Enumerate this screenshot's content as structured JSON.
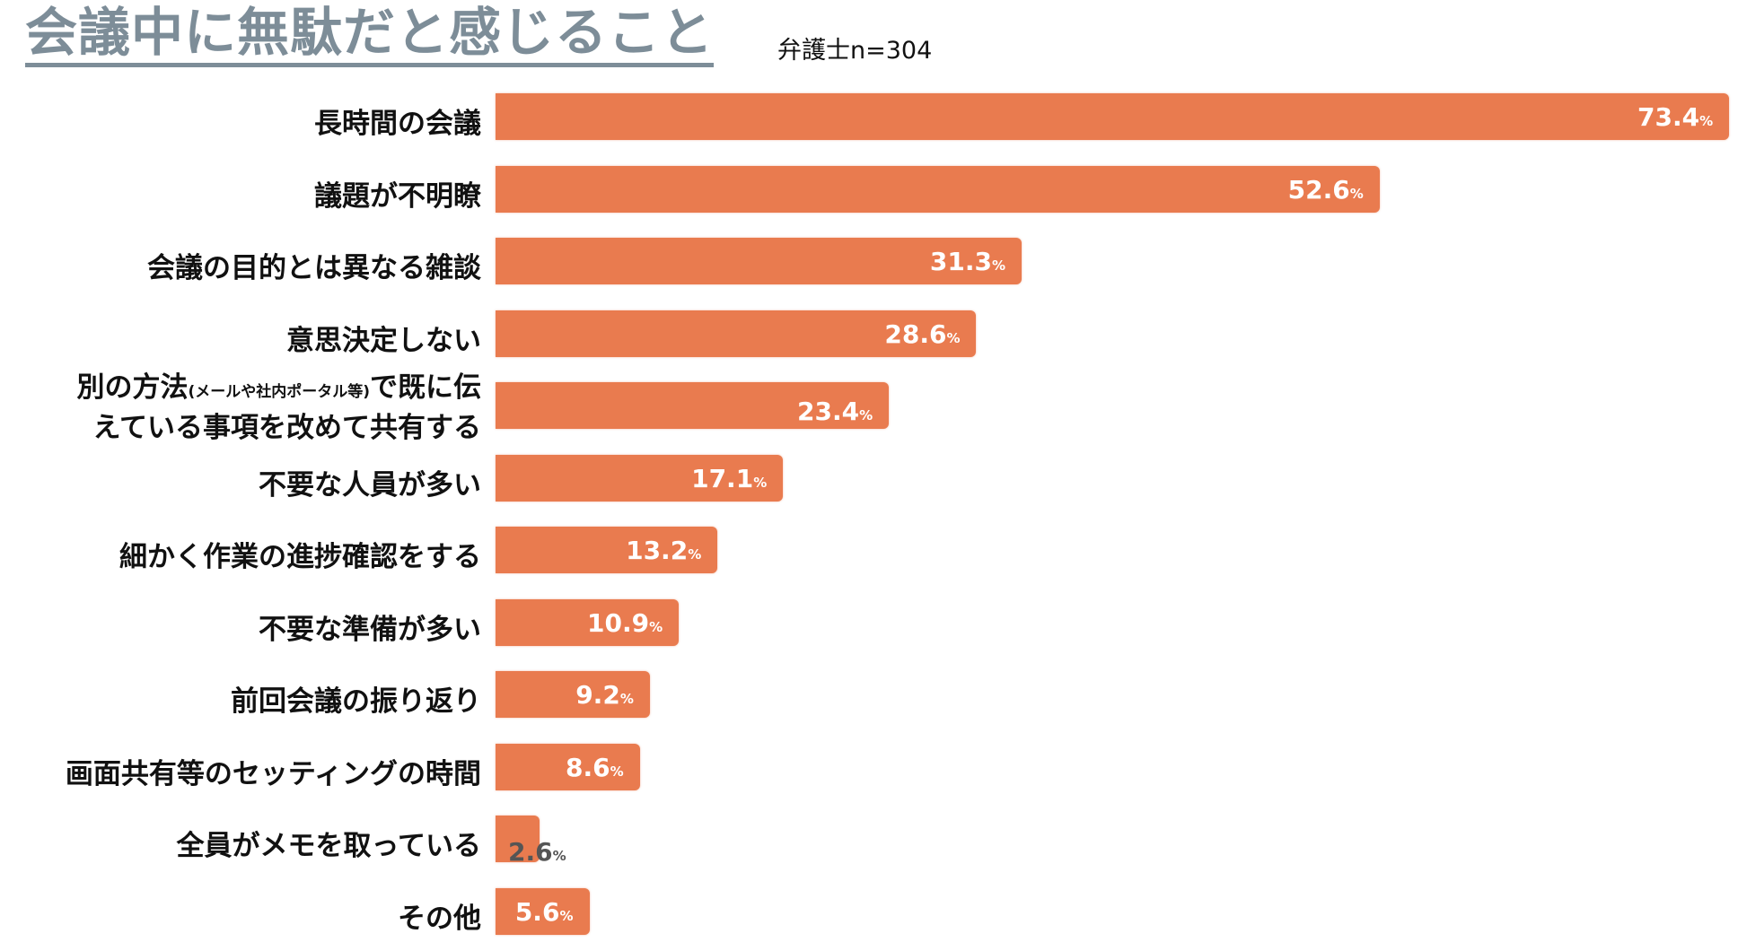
{
  "chart_data": {
    "type": "bar",
    "orientation": "horizontal",
    "title": "会議中に無駄だと感じること",
    "subtitle": "弁護士n=304",
    "unit": "%",
    "xlim": [
      0,
      73.4
    ],
    "grid": false,
    "bar_color": "#e97b4f",
    "categories": [
      {
        "parts": [
          {
            "text": "長時間の会議"
          }
        ]
      },
      {
        "parts": [
          {
            "text": "議題が不明瞭"
          }
        ]
      },
      {
        "parts": [
          {
            "text": "会議の目的とは異なる雑談"
          }
        ]
      },
      {
        "parts": [
          {
            "text": "意思決定しない"
          }
        ]
      },
      {
        "parts": [
          {
            "text": "別の方法"
          },
          {
            "text": "(メールや社内ポータル等)",
            "small": true
          },
          {
            "text": "で既に伝"
          },
          {
            "text": "えている事項を改めて共有する",
            "newline": true
          }
        ]
      },
      {
        "parts": [
          {
            "text": "不要な人員が多い"
          }
        ]
      },
      {
        "parts": [
          {
            "text": "細かく作業の進捗確認をする"
          }
        ]
      },
      {
        "parts": [
          {
            "text": "不要な準備が多い"
          }
        ]
      },
      {
        "parts": [
          {
            "text": "前回会議の振り返り"
          }
        ]
      },
      {
        "parts": [
          {
            "text": "画面共有等のセッティングの時間"
          }
        ]
      },
      {
        "parts": [
          {
            "text": "全員がメモを取っている"
          }
        ]
      },
      {
        "parts": [
          {
            "text": "その他"
          }
        ]
      }
    ],
    "values": [
      73.4,
      52.6,
      31.3,
      28.6,
      23.4,
      17.1,
      13.2,
      10.9,
      9.2,
      8.6,
      2.6,
      5.6
    ],
    "value_labels": [
      "73.4",
      "52.6",
      "31.3",
      "28.6",
      "23.4",
      "17.1",
      "13.2",
      "10.9",
      "9.2",
      "8.6",
      "2.6",
      "5.6"
    ],
    "pct_symbol": "%"
  }
}
